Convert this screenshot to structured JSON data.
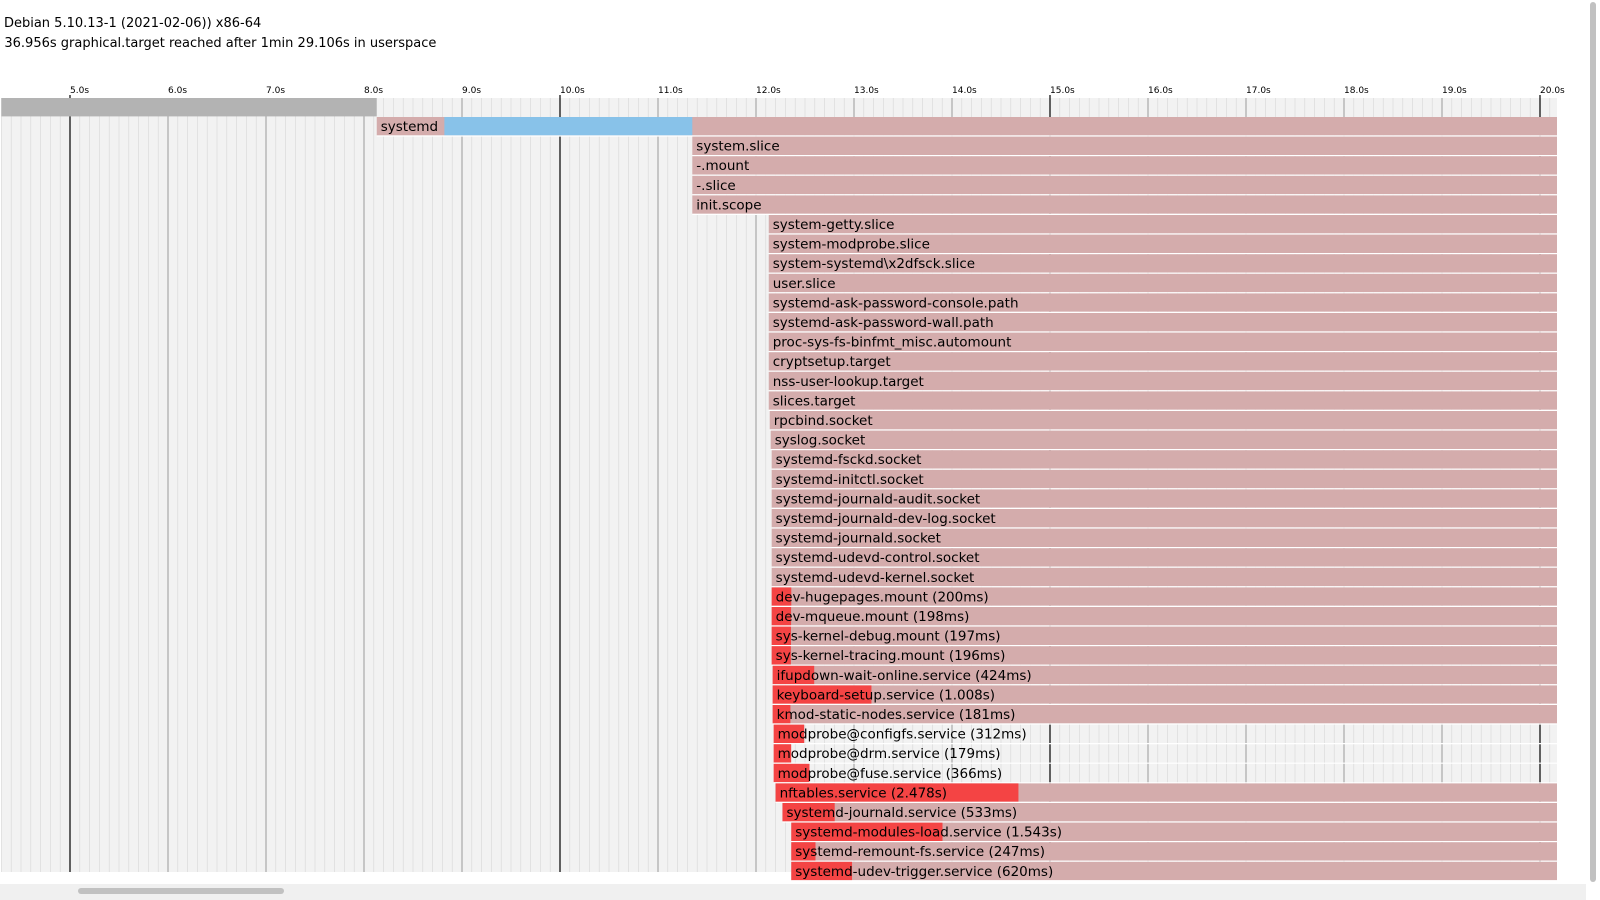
{
  "header": {
    "line1": "P Debian 5.10.13-1 (2021-02-06)) x86-64",
    "line2": "n 36.956s graphical.target reached after 1min 29.106s in userspace"
  },
  "colors": {
    "background_band": "#f2f2f2",
    "minor_grid": "#d6d6d6",
    "major_grid": "#000000",
    "kernel_bar": "#b3b3b3",
    "active_bar": "#d4acac",
    "activating_bar": "#f44444",
    "generators_bar": "#88c2e9",
    "row_separator": "#ffffff"
  },
  "chart_data": {
    "type": "gantt",
    "title": "",
    "xunit": "s",
    "xlim": [
      4.3,
      20.2
    ],
    "tick_step": 1.0,
    "major_tick_every": 5,
    "tick_labels": [
      "5.0s",
      "6.0s",
      "7.0s",
      "8.0s",
      "9.0s",
      "10.0s",
      "11.0s",
      "12.0s",
      "13.0s",
      "14.0s",
      "15.0s",
      "16.0s",
      "17.0s",
      "18.0s",
      "19.0s",
      "20.0s"
    ],
    "kernel_bar": {
      "start": 4.3,
      "end": 8.13
    },
    "rows": [
      {
        "name": "systemd",
        "label": "systemd",
        "start": 8.13,
        "activating_end": null,
        "active_end": 20.2,
        "extra": {
          "kind": "generators",
          "start": 8.82,
          "end": 11.35
        }
      },
      {
        "name": "system.slice",
        "label": "system.slice",
        "start": 11.35,
        "activating_end": null,
        "active_end": 20.2
      },
      {
        "name": "-.mount",
        "label": "-.mount",
        "start": 11.35,
        "activating_end": null,
        "active_end": 20.2
      },
      {
        "name": "-.slice",
        "label": "-.slice",
        "start": 11.35,
        "activating_end": null,
        "active_end": 20.2
      },
      {
        "name": "init.scope",
        "label": "init.scope",
        "start": 11.35,
        "activating_end": null,
        "active_end": 20.2
      },
      {
        "name": "system-getty.slice",
        "label": "system-getty.slice",
        "start": 12.13,
        "activating_end": null,
        "active_end": 20.2
      },
      {
        "name": "system-modprobe.slice",
        "label": "system-modprobe.slice",
        "start": 12.13,
        "activating_end": null,
        "active_end": 20.2
      },
      {
        "name": "system-systemd\\x2dfsck.slice",
        "label": "system-systemd\\x2dfsck.slice",
        "start": 12.13,
        "activating_end": null,
        "active_end": 20.2
      },
      {
        "name": "user.slice",
        "label": "user.slice",
        "start": 12.13,
        "activating_end": null,
        "active_end": 20.2
      },
      {
        "name": "systemd-ask-password-console.path",
        "label": "systemd-ask-password-console.path",
        "start": 12.13,
        "activating_end": null,
        "active_end": 20.2
      },
      {
        "name": "systemd-ask-password-wall.path",
        "label": "systemd-ask-password-wall.path",
        "start": 12.13,
        "activating_end": null,
        "active_end": 20.2
      },
      {
        "name": "proc-sys-fs-binfmt_misc.automount",
        "label": "proc-sys-fs-binfmt_misc.automount",
        "start": 12.13,
        "activating_end": null,
        "active_end": 20.2
      },
      {
        "name": "cryptsetup.target",
        "label": "cryptsetup.target",
        "start": 12.13,
        "activating_end": null,
        "active_end": 20.2
      },
      {
        "name": "nss-user-lookup.target",
        "label": "nss-user-lookup.target",
        "start": 12.13,
        "activating_end": null,
        "active_end": 20.2
      },
      {
        "name": "slices.target",
        "label": "slices.target",
        "start": 12.13,
        "activating_end": null,
        "active_end": 20.2
      },
      {
        "name": "rpcbind.socket",
        "label": "rpcbind.socket",
        "start": 12.14,
        "activating_end": null,
        "active_end": 20.2
      },
      {
        "name": "syslog.socket",
        "label": "syslog.socket",
        "start": 12.15,
        "activating_end": null,
        "active_end": 20.2
      },
      {
        "name": "systemd-fsckd.socket",
        "label": "systemd-fsckd.socket",
        "start": 12.16,
        "activating_end": null,
        "active_end": 20.2
      },
      {
        "name": "systemd-initctl.socket",
        "label": "systemd-initctl.socket",
        "start": 12.16,
        "activating_end": null,
        "active_end": 20.2
      },
      {
        "name": "systemd-journald-audit.socket",
        "label": "systemd-journald-audit.socket",
        "start": 12.16,
        "activating_end": null,
        "active_end": 20.2
      },
      {
        "name": "systemd-journald-dev-log.socket",
        "label": "systemd-journald-dev-log.socket",
        "start": 12.16,
        "activating_end": null,
        "active_end": 20.2
      },
      {
        "name": "systemd-journald.socket",
        "label": "systemd-journald.socket",
        "start": 12.16,
        "activating_end": null,
        "active_end": 20.2
      },
      {
        "name": "systemd-udevd-control.socket",
        "label": "systemd-udevd-control.socket",
        "start": 12.16,
        "activating_end": null,
        "active_end": 20.2
      },
      {
        "name": "systemd-udevd-kernel.socket",
        "label": "systemd-udevd-kernel.socket",
        "start": 12.16,
        "activating_end": null,
        "active_end": 20.2
      },
      {
        "name": "dev-hugepages.mount",
        "label": "dev-hugepages.mount (200ms)",
        "start": 12.16,
        "activating_end": 12.36,
        "active_end": 20.2
      },
      {
        "name": "dev-mqueue.mount",
        "label": "dev-mqueue.mount (198ms)",
        "start": 12.16,
        "activating_end": 12.358,
        "active_end": 20.2
      },
      {
        "name": "sys-kernel-debug.mount",
        "label": "sys-kernel-debug.mount (197ms)",
        "start": 12.16,
        "activating_end": 12.357,
        "active_end": 20.2
      },
      {
        "name": "sys-kernel-tracing.mount",
        "label": "sys-kernel-tracing.mount (196ms)",
        "start": 12.16,
        "activating_end": 12.356,
        "active_end": 20.2
      },
      {
        "name": "ifupdown-wait-online.service",
        "label": "ifupdown-wait-online.service (424ms)",
        "start": 12.17,
        "activating_end": 12.594,
        "active_end": 20.2
      },
      {
        "name": "keyboard-setup.service",
        "label": "keyboard-setup.service (1.008s)",
        "start": 12.17,
        "activating_end": 13.178,
        "active_end": 20.2
      },
      {
        "name": "kmod-static-nodes.service",
        "label": "kmod-static-nodes.service (181ms)",
        "start": 12.17,
        "activating_end": 12.351,
        "active_end": 20.2
      },
      {
        "name": "modprobe@configfs.service",
        "label": "modprobe@configfs.service (312ms)",
        "start": 12.18,
        "activating_end": 12.492,
        "active_end": null
      },
      {
        "name": "modprobe@drm.service",
        "label": "modprobe@drm.service (179ms)",
        "start": 12.18,
        "activating_end": 12.359,
        "active_end": null
      },
      {
        "name": "modprobe@fuse.service",
        "label": "modprobe@fuse.service (366ms)",
        "start": 12.18,
        "activating_end": 12.546,
        "active_end": null
      },
      {
        "name": "nftables.service",
        "label": "nftables.service (2.478s)",
        "start": 12.2,
        "activating_end": 14.678,
        "active_end": 20.2
      },
      {
        "name": "systemd-journald.service",
        "label": "systemd-journald.service (533ms)",
        "start": 12.27,
        "activating_end": 12.803,
        "active_end": 20.2
      },
      {
        "name": "systemd-modules-load.service",
        "label": "systemd-modules-load.service (1.543s)",
        "start": 12.36,
        "activating_end": 13.903,
        "active_end": 20.2
      },
      {
        "name": "systemd-remount-fs.service",
        "label": "systemd-remount-fs.service (247ms)",
        "start": 12.36,
        "activating_end": 12.607,
        "active_end": 20.2
      },
      {
        "name": "systemd-udev-trigger.service",
        "label": "systemd-udev-trigger.service (620ms)",
        "start": 12.36,
        "activating_end": 12.98,
        "active_end": 20.2
      }
    ]
  }
}
